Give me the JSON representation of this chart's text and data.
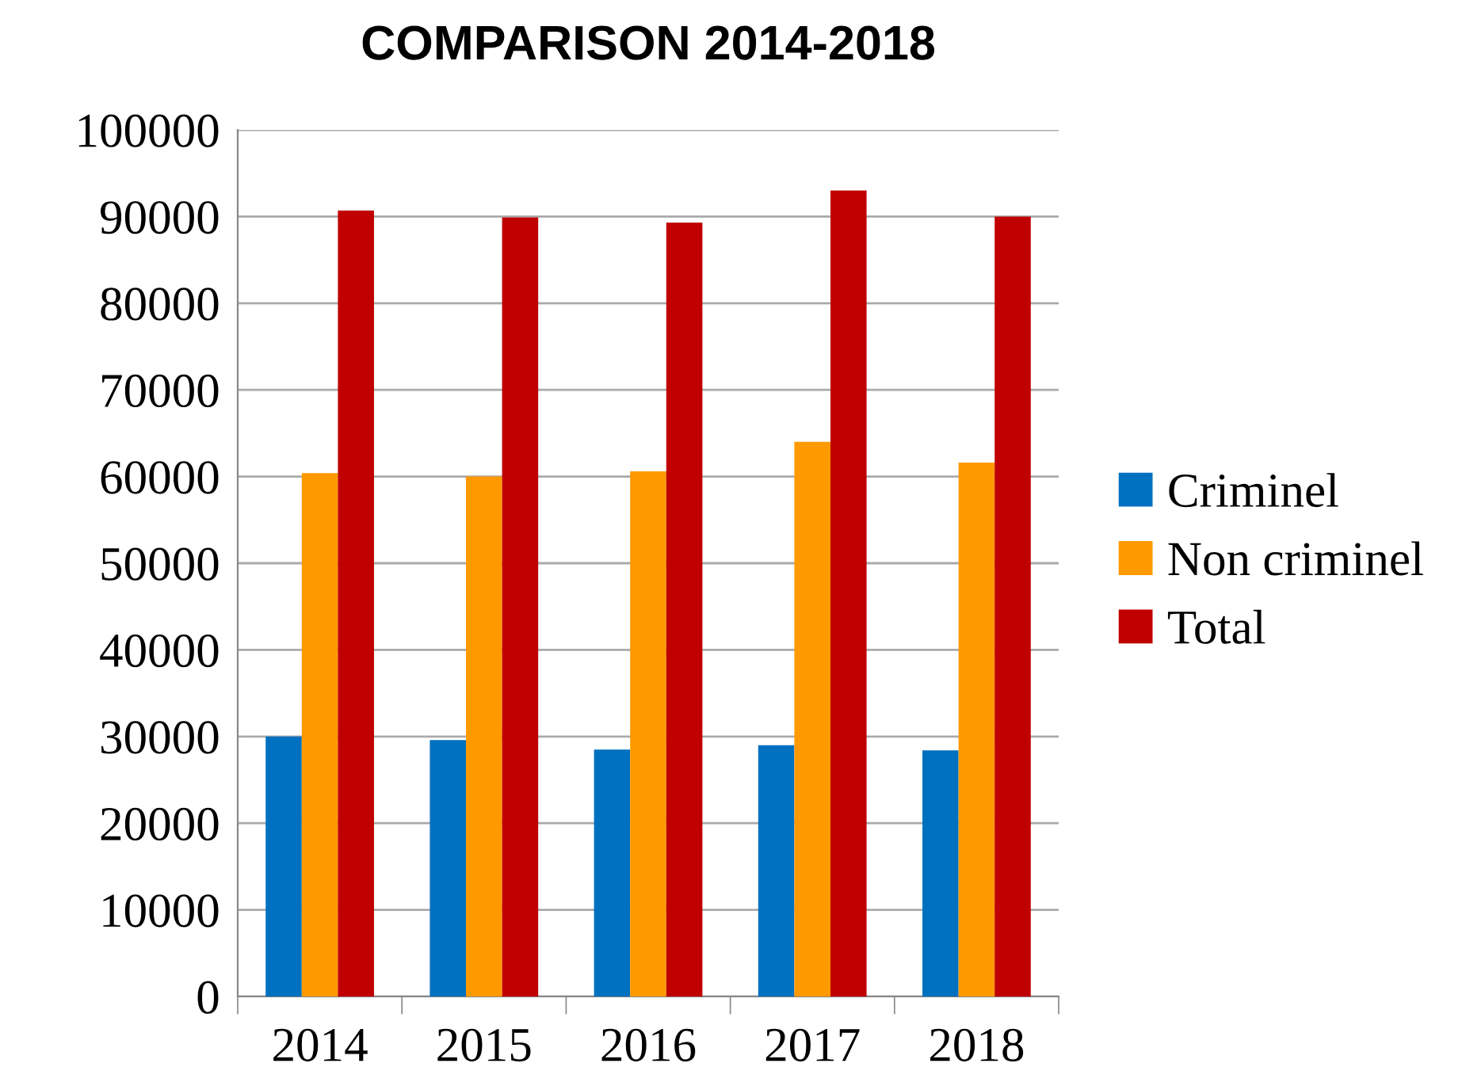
{
  "chart_data": {
    "type": "bar",
    "title": "COMPARISON 2014-2018",
    "categories": [
      "2014",
      "2015",
      "2016",
      "2017",
      "2018"
    ],
    "series": [
      {
        "name": "Criminel",
        "color": "#0070c0",
        "values": [
          30000,
          29600,
          28500,
          29000,
          28400
        ]
      },
      {
        "name": "Non criminel",
        "color": "#ff9900",
        "values": [
          60400,
          60000,
          60600,
          64000,
          61600
        ]
      },
      {
        "name": "Total",
        "color": "#c00000",
        "values": [
          90700,
          89900,
          89300,
          93000,
          90000
        ]
      }
    ],
    "ylim": [
      0,
      100000
    ],
    "yticks": [
      0,
      10000,
      20000,
      30000,
      40000,
      50000,
      60000,
      70000,
      80000,
      90000,
      100000
    ],
    "grid": "y",
    "legend": "right"
  }
}
